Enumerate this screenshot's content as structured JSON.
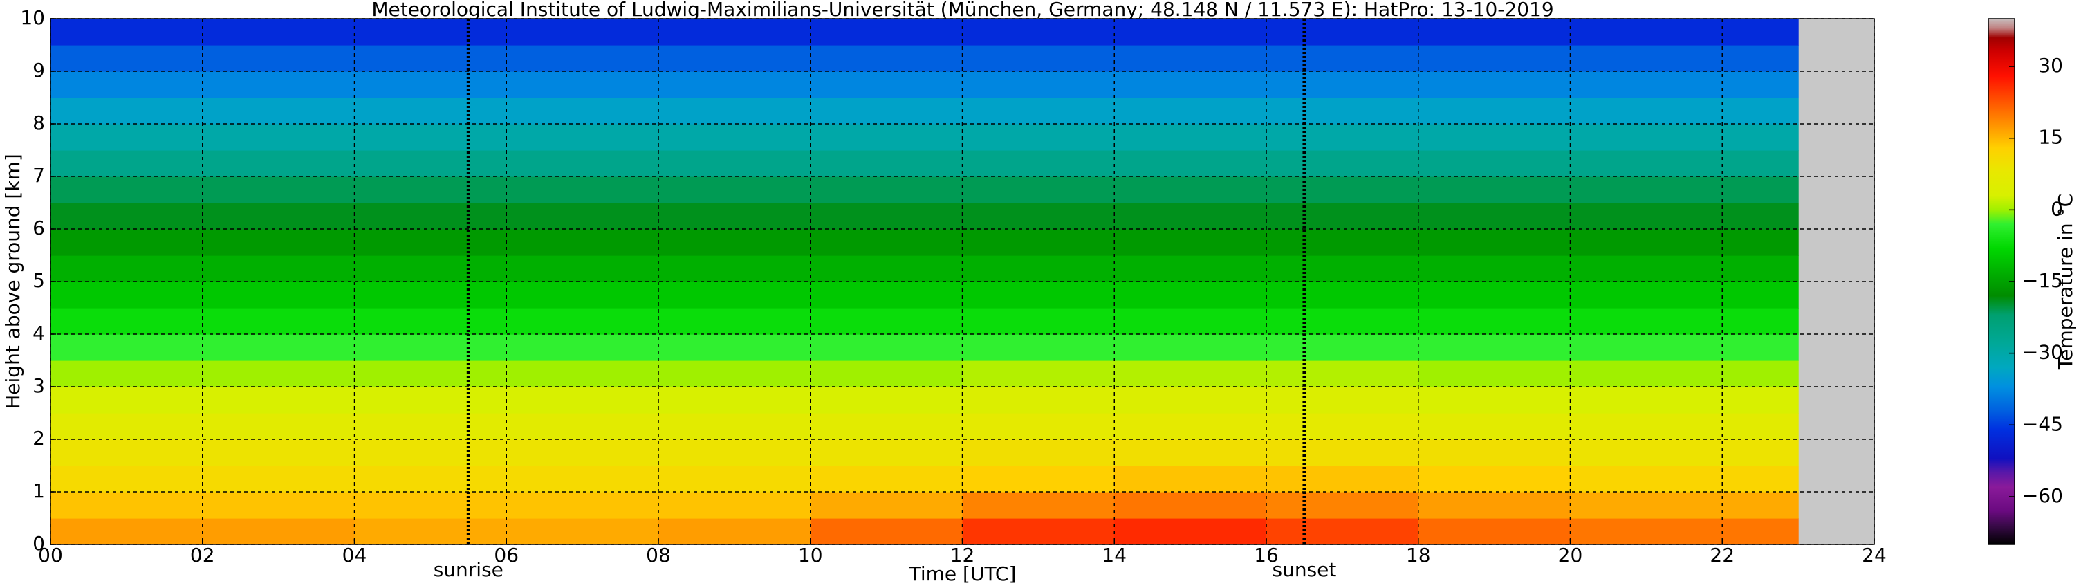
{
  "chart_data": {
    "type": "heatmap",
    "title": "Meteorological Institute of Ludwig-Maximilians-Universität (München, Germany; 48.148 N / 11.573 E):    HatPro: 13-10-2019",
    "x_label": "Time [UTC]",
    "y_label": "Height above ground [km]",
    "colorbar_label": "Temperature in °C",
    "x_bins": [
      0,
      2,
      4,
      6,
      8,
      10,
      12,
      14,
      16,
      18,
      20,
      22,
      23
    ],
    "y_bins": [
      0,
      0.5,
      1,
      1.5,
      2,
      2.5,
      3,
      3.5,
      4,
      4.5,
      5,
      5.5,
      6,
      6.5,
      7,
      7.5,
      8,
      8.5,
      9,
      9.5,
      10
    ],
    "values": [
      [
        17,
        17,
        16,
        16,
        17,
        21,
        25,
        26,
        24,
        21,
        20,
        20
      ],
      [
        14,
        14,
        14,
        14,
        14,
        16,
        19,
        20,
        19,
        17,
        16,
        16
      ],
      [
        11,
        11,
        11,
        11,
        11,
        12,
        13,
        14,
        14,
        13,
        12,
        12
      ],
      [
        9,
        9,
        9,
        9,
        9,
        9,
        10,
        10,
        10,
        10,
        9,
        9
      ],
      [
        6,
        6,
        6,
        6,
        6,
        6,
        7,
        7,
        7,
        6,
        6,
        6
      ],
      [
        3,
        3,
        3,
        3,
        3,
        3,
        4,
        4,
        4,
        3,
        3,
        3
      ],
      [
        0,
        0,
        0,
        0,
        0,
        0,
        1,
        1,
        1,
        0,
        0,
        0
      ],
      [
        -3,
        -3,
        -3,
        -3,
        -3,
        -3,
        -3,
        -3,
        -3,
        -3,
        -3,
        -3
      ],
      [
        -7,
        -7,
        -7,
        -7,
        -7,
        -7,
        -7,
        -7,
        -7,
        -7,
        -7,
        -7
      ],
      [
        -10,
        -10,
        -10,
        -10,
        -10,
        -10,
        -10,
        -10,
        -10,
        -10,
        -10,
        -10
      ],
      [
        -13,
        -13,
        -13,
        -13,
        -13,
        -13,
        -13,
        -13,
        -13,
        -13,
        -13,
        -13
      ],
      [
        -16,
        -16,
        -16,
        -16,
        -16,
        -16,
        -16,
        -16,
        -16,
        -16,
        -16,
        -16
      ],
      [
        -19,
        -19,
        -19,
        -19,
        -19,
        -19,
        -19,
        -19,
        -19,
        -19,
        -19,
        -19
      ],
      [
        -21,
        -21,
        -21,
        -21,
        -21,
        -21,
        -21,
        -21,
        -21,
        -21,
        -21,
        -21
      ],
      [
        -26,
        -26,
        -26,
        -26,
        -26,
        -26,
        -26,
        -26,
        -26,
        -26,
        -26,
        -26
      ],
      [
        -30,
        -30,
        -30,
        -30,
        -30,
        -30,
        -30,
        -30,
        -30,
        -30,
        -30,
        -30
      ],
      [
        -34,
        -34,
        -34,
        -34,
        -34,
        -34,
        -34,
        -34,
        -34,
        -34,
        -34,
        -34
      ],
      [
        -38,
        -38,
        -38,
        -38,
        -38,
        -38,
        -38,
        -38,
        -38,
        -38,
        -38,
        -38
      ],
      [
        -42,
        -42,
        -42,
        -42,
        -42,
        -42,
        -42,
        -42,
        -42,
        -42,
        -42,
        -42
      ],
      [
        -47,
        -47,
        -47,
        -47,
        -47,
        -47,
        -47,
        -47,
        -47,
        -47,
        -47,
        -47
      ]
    ],
    "xlim": [
      0,
      24
    ],
    "xticks": [
      {
        "value": 0,
        "label": "00"
      },
      {
        "value": 2,
        "label": "02"
      },
      {
        "value": 4,
        "label": "04"
      },
      {
        "value": 6,
        "label": "06"
      },
      {
        "value": 8,
        "label": "08"
      },
      10,
      12,
      14,
      16,
      18,
      20,
      22,
      24
    ],
    "ylim": [
      0,
      10
    ],
    "yticks": [
      0,
      1,
      2,
      3,
      4,
      5,
      6,
      7,
      8,
      9,
      10
    ],
    "grid": true,
    "missing_color": "#c8c8c8",
    "clim": [
      -70,
      40
    ],
    "cticks": [
      {
        "value": 30,
        "label": "30"
      },
      {
        "value": 15,
        "label": "15"
      },
      {
        "value": 0,
        "label": "0"
      },
      {
        "value": -15,
        "label": "−15"
      },
      {
        "value": -30,
        "label": "−30"
      },
      {
        "value": -45,
        "label": "−45"
      },
      {
        "value": -60,
        "label": "−60"
      }
    ],
    "colormap": [
      {
        "value": -70,
        "color": "#000000"
      },
      {
        "value": -66,
        "color": "#3a0a4a"
      },
      {
        "value": -63,
        "color": "#6a0a80"
      },
      {
        "value": -58,
        "color": "#8a1a9a"
      },
      {
        "value": -55,
        "color": "#5a18a8"
      },
      {
        "value": -52,
        "color": "#1010c0"
      },
      {
        "value": -46,
        "color": "#0030e0"
      },
      {
        "value": -42,
        "color": "#0060e0"
      },
      {
        "value": -37,
        "color": "#0090e0"
      },
      {
        "value": -33,
        "color": "#00a8c0"
      },
      {
        "value": -28,
        "color": "#00a898"
      },
      {
        "value": -22,
        "color": "#00a070"
      },
      {
        "value": -18,
        "color": "#008c00"
      },
      {
        "value": -13,
        "color": "#00b000"
      },
      {
        "value": -8,
        "color": "#00d800"
      },
      {
        "value": -3,
        "color": "#30f030"
      },
      {
        "value": 0,
        "color": "#a0f000"
      },
      {
        "value": 3,
        "color": "#d8f000"
      },
      {
        "value": 8,
        "color": "#e8e800"
      },
      {
        "value": 13,
        "color": "#ffd000"
      },
      {
        "value": 18,
        "color": "#ff9000"
      },
      {
        "value": 23,
        "color": "#ff5000"
      },
      {
        "value": 28,
        "color": "#ff1000"
      },
      {
        "value": 33,
        "color": "#d00000"
      },
      {
        "value": 36,
        "color": "#a00000"
      },
      {
        "value": 38,
        "color": "#c08080"
      },
      {
        "value": 40,
        "color": "#c8c0c0"
      }
    ],
    "annotations": [
      {
        "x": 5.5,
        "label": "sunrise"
      },
      {
        "x": 16.5,
        "label": "sunset"
      }
    ]
  }
}
